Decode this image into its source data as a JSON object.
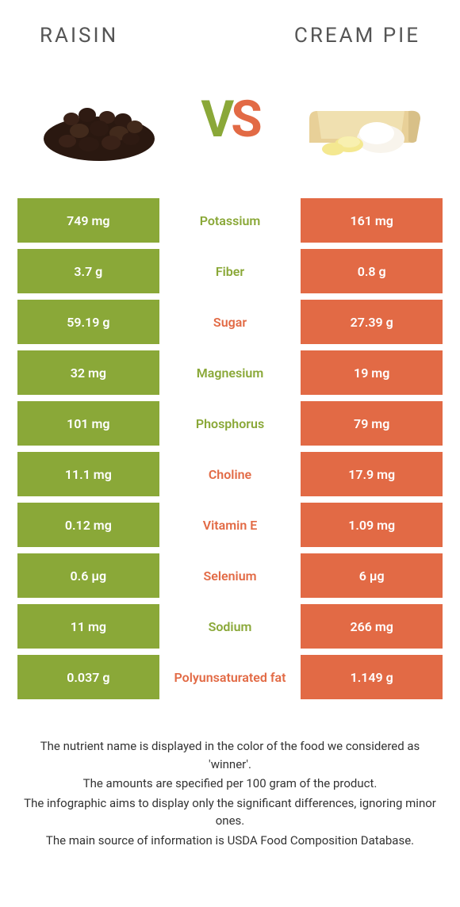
{
  "colors": {
    "left": "#8aa838",
    "right": "#e26a45",
    "rowText": "#ffffff",
    "bg": "#ffffff",
    "titleText": "#555555",
    "notesText": "#333333"
  },
  "typography": {
    "title_fontsize": 26,
    "title_letterspacing": 3,
    "vs_fontsize": 64,
    "cell_fontsize": 16,
    "notes_fontsize": 15
  },
  "header": {
    "left": "Raisin",
    "right": "Cream Pie"
  },
  "vs": {
    "v": "V",
    "s": "S"
  },
  "rows": [
    {
      "left": "749 mg",
      "label": "Potassium",
      "right": "161 mg",
      "winner": "left"
    },
    {
      "left": "3.7 g",
      "label": "Fiber",
      "right": "0.8 g",
      "winner": "left"
    },
    {
      "left": "59.19 g",
      "label": "Sugar",
      "right": "27.39 g",
      "winner": "right"
    },
    {
      "left": "32 mg",
      "label": "Magnesium",
      "right": "19 mg",
      "winner": "left"
    },
    {
      "left": "101 mg",
      "label": "Phosphorus",
      "right": "79 mg",
      "winner": "left"
    },
    {
      "left": "11.1 mg",
      "label": "Choline",
      "right": "17.9 mg",
      "winner": "right"
    },
    {
      "left": "0.12 mg",
      "label": "Vitamin E",
      "right": "1.09 mg",
      "winner": "right"
    },
    {
      "left": "0.6 µg",
      "label": "Selenium",
      "right": "6 µg",
      "winner": "right"
    },
    {
      "left": "11 mg",
      "label": "Sodium",
      "right": "266 mg",
      "winner": "left"
    },
    {
      "left": "0.037 g",
      "label": "Polyunsaturated fat",
      "right": "1.149 g",
      "winner": "right"
    }
  ],
  "notes": [
    "The nutrient name is displayed in the color of the food we considered as 'winner'.",
    "The amounts are specified per 100 gram of the product.",
    "The infographic aims to display only the significant differences, ignoring minor ones.",
    "The main source of information is USDA Food Composition Database."
  ]
}
